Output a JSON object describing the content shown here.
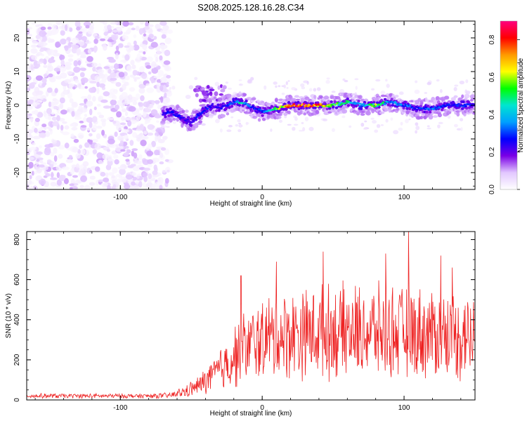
{
  "chart_data": [
    {
      "type": "heatmap",
      "title": "S208.2025.128.16.28.C34",
      "xlabel": "Height of straight line (km)",
      "ylabel": "Frequency (Hz)",
      "xlim": [
        -166,
        150
      ],
      "ylim": [
        -25,
        25
      ],
      "x_ticks": [
        -100,
        0,
        100
      ],
      "y_ticks": [
        -20,
        -10,
        0,
        10,
        20
      ],
      "colorbar": {
        "label": "Normalized spectral amplitude",
        "range": [
          0,
          0.9
        ],
        "ticks": [
          0.0,
          0.2,
          0.4,
          0.6,
          0.8
        ],
        "colormap": [
          "#ffffff",
          "#e2c7ff",
          "#7a00e6",
          "#0000ff",
          "#00a0ff",
          "#00e5d0",
          "#00ff00",
          "#ffff00",
          "#ff9900",
          "#ff0000",
          "#ff0080"
        ]
      },
      "regions": [
        {
          "x_range": [
            -166,
            -67
          ],
          "freq_range": [
            -25,
            25
          ],
          "amplitude_range": [
            0.0,
            0.1
          ],
          "description_kind": "noise"
        },
        {
          "x_range": [
            -67,
            150
          ],
          "centre_freq": 0,
          "bandwidth_hz": 3,
          "amplitude_range": [
            0.1,
            0.9
          ]
        }
      ],
      "ridge": {
        "x": [
          -72,
          -65,
          -60,
          -55,
          -50,
          -45,
          -40,
          -35,
          -30,
          -25,
          -20,
          -15,
          -10,
          -5,
          0,
          10,
          20,
          30,
          40,
          50,
          60,
          70,
          80,
          90,
          100,
          110,
          120,
          130,
          140,
          148
        ],
        "freq": [
          -3,
          -2,
          -3,
          -4,
          -5,
          -3,
          -1,
          0,
          -1,
          0,
          1,
          1,
          0,
          -1,
          -2,
          -1,
          0,
          0,
          0,
          0,
          1,
          0,
          0,
          1,
          0,
          -1,
          -1,
          0,
          0,
          0
        ],
        "amp": [
          0.2,
          0.3,
          0.3,
          0.25,
          0.25,
          0.3,
          0.3,
          0.25,
          0.25,
          0.3,
          0.35,
          0.5,
          0.35,
          0.3,
          0.3,
          0.6,
          0.8,
          0.9,
          0.8,
          0.6,
          0.5,
          0.4,
          0.6,
          0.4,
          0.35,
          0.3,
          0.35,
          0.3,
          0.3,
          0.3
        ]
      }
    },
    {
      "type": "line",
      "xlabel": "Height of straight line (km)",
      "ylabel": "SNR (10 * v/v)",
      "xlim": [
        -166,
        150
      ],
      "ylim": [
        0,
        840
      ],
      "x_ticks": [
        -100,
        0,
        100
      ],
      "y_ticks": [
        0,
        200,
        400,
        600,
        800
      ],
      "color": "#ee2222",
      "envelope": {
        "x": [
          -166,
          -140,
          -100,
          -80,
          -65,
          -55,
          -45,
          -35,
          -25,
          -15,
          -5,
          5,
          20,
          40,
          60,
          80,
          100,
          120,
          150
        ],
        "mean": [
          20,
          20,
          20,
          20,
          22,
          40,
          70,
          120,
          180,
          250,
          290,
          310,
          330,
          340,
          340,
          340,
          340,
          330,
          320
        ],
        "spread": [
          12,
          12,
          12,
          12,
          15,
          30,
          50,
          90,
          140,
          180,
          200,
          220,
          230,
          240,
          240,
          240,
          240,
          235,
          230
        ]
      },
      "peaks": [
        {
          "x": -15,
          "y": 620
        },
        {
          "x": 10,
          "y": 690
        },
        {
          "x": 43,
          "y": 740
        },
        {
          "x": 87,
          "y": 730
        },
        {
          "x": 103,
          "y": 840
        },
        {
          "x": 126,
          "y": 720
        },
        {
          "x": 134,
          "y": 660
        }
      ]
    }
  ]
}
